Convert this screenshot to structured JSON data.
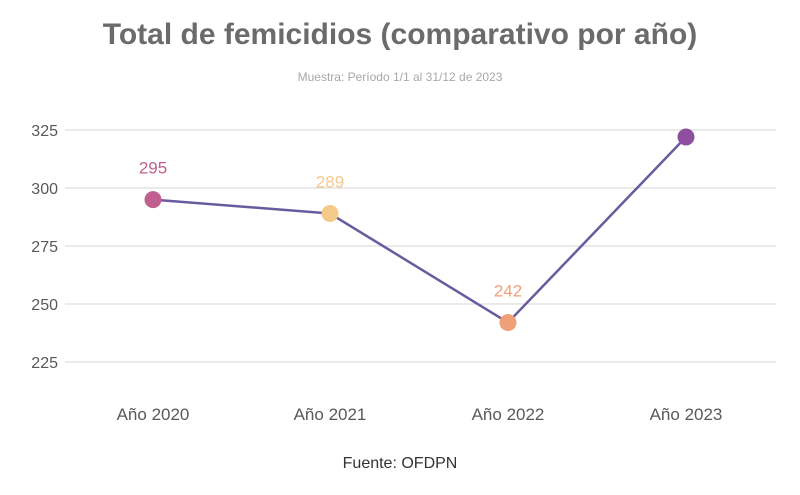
{
  "chart_data": {
    "type": "line",
    "title": "Total de femicidios (comparativo por año)",
    "subtitle": "Muestra: Período 1/1 al 31/12  de 2023",
    "source": "Fuente: OFDPN",
    "categories": [
      "Año 2020",
      "Año 2021",
      "Año 2022",
      "Año 2023"
    ],
    "values": [
      295,
      289,
      242,
      322
    ],
    "data_labels": [
      "295",
      "289",
      "242",
      ""
    ],
    "point_colors": [
      "#c0608f",
      "#f5c98a",
      "#f0a078",
      "#8e4f9e"
    ],
    "label_colors": [
      "#c0608f",
      "#f5c98a",
      "#f0a078",
      "#8e4f9e"
    ],
    "line_color": "#6a5a9e",
    "yticks": [
      225,
      250,
      275,
      300,
      325
    ],
    "ylim": [
      225,
      325
    ],
    "grid": true,
    "xlabel": "",
    "ylabel": ""
  }
}
